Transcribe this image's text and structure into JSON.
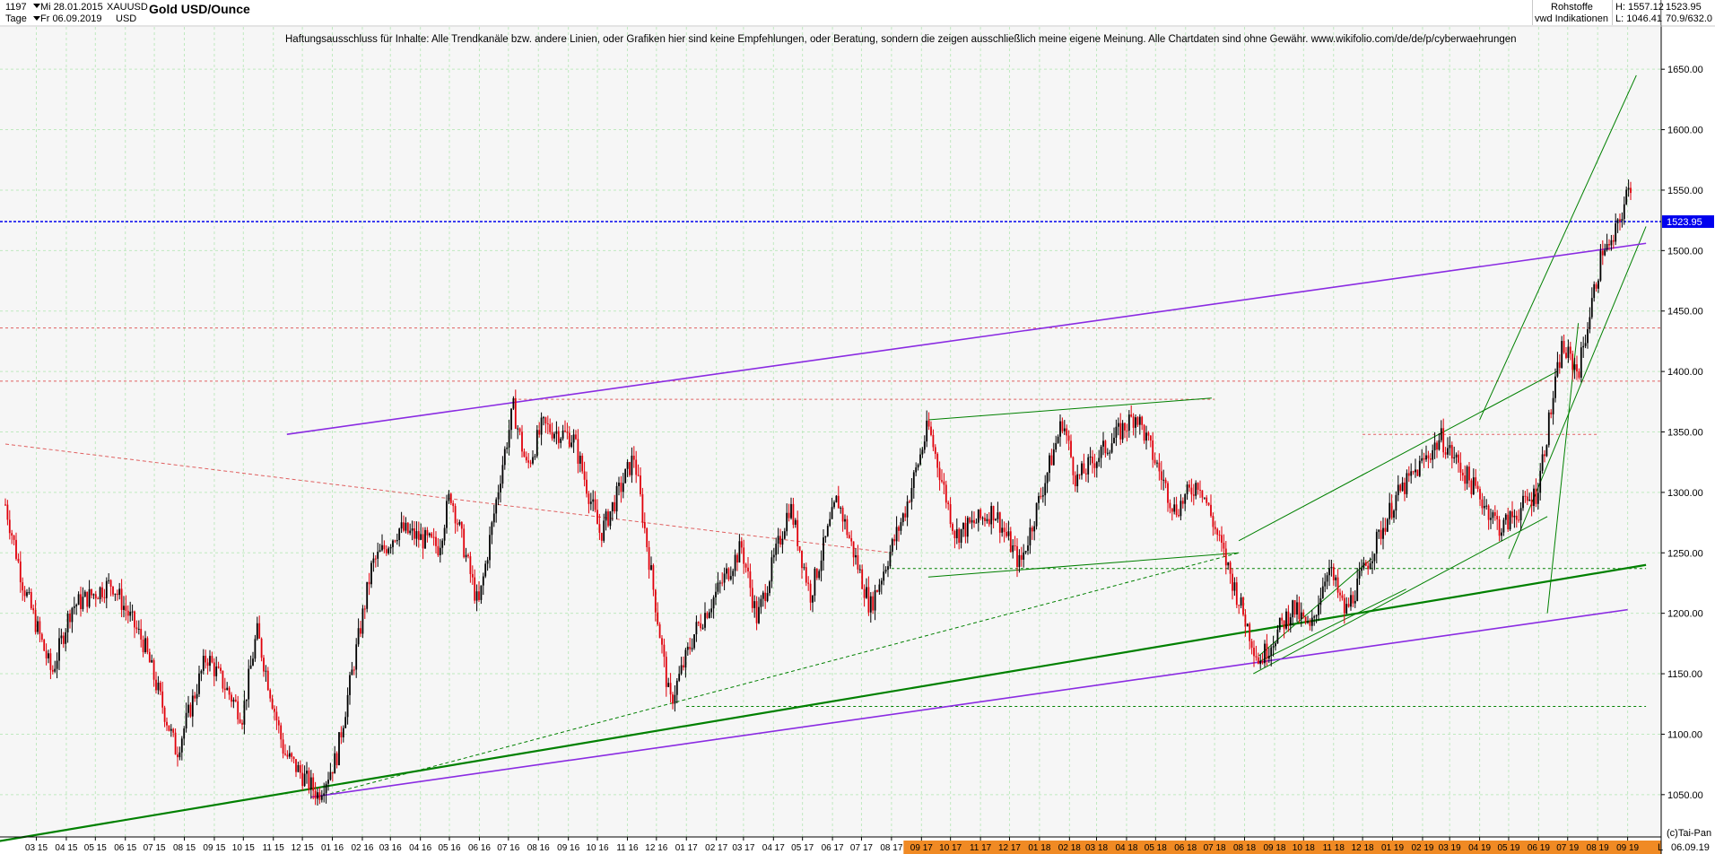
{
  "header": {
    "number": "1197",
    "date_label": "Mi 28.01.2015",
    "symbol": "XAUUSD",
    "title": "Gold USD/Ounce",
    "period": "Tage",
    "date_to": "Fr 06.09.2019",
    "currency": "USD",
    "category": "Rohstoffe",
    "source": "vwd Indikationen",
    "high": "H: 1557.12",
    "low": "L: 1046.41",
    "last_value": "1523.95",
    "extra": "70.9/632.0"
  },
  "disclaimer": "Haftungsausschluss für Inhalte: Alle Trendkanäle bzw. andere Linien, oder Grafiken hier sind keine Empfehlungen, oder Beratung, sondern die zeigen ausschließlich meine eigene Meinung. Alle Chartdaten sind ohne Gewähr.  www.wikifolio.com/de/de/p/cyberwaehrungen",
  "copyright": "(c)Tai-Pan",
  "footer": {
    "letter": "L",
    "end_date": "06.09.19"
  },
  "colors": {
    "up_candle": "#000000",
    "down_candle": "#e0000a",
    "trend_green": "#008000",
    "trend_purple": "#8a2be2",
    "level_red": "#e06060",
    "level_blue": "#0000ee",
    "grid": "#bfe9bf",
    "future_axis": "#f08a24"
  },
  "chart_data": {
    "type": "candlestick",
    "title": "Gold USD/Ounce",
    "ylim": [
      1015,
      1685
    ],
    "y_ticks": [
      1050,
      1100,
      1150,
      1200,
      1250,
      1300,
      1350,
      1400,
      1450,
      1500,
      1550,
      1600,
      1650
    ],
    "x_range": [
      "2015-01-28",
      "2019-09-06"
    ],
    "x_tick_labels": [
      "03 15",
      "04 15",
      "05 15",
      "06 15",
      "07 15",
      "08 15",
      "09 15",
      "10 15",
      "11 15",
      "12 15",
      "01 16",
      "02 16",
      "03 16",
      "04 16",
      "05 16",
      "06 16",
      "07 16",
      "08 16",
      "09 16",
      "10 16",
      "11 16",
      "12 16",
      "01 17",
      "02 17",
      "03 17",
      "04 17",
      "05 17",
      "06 17",
      "07 17",
      "08 17",
      "09 17",
      "10 17",
      "11 17",
      "12 17",
      "01 18",
      "02 18",
      "03 18",
      "04 18",
      "05 18",
      "06 18",
      "07 18",
      "08 18",
      "09 18",
      "10 18",
      "11 18",
      "12 18",
      "01 19",
      "02 19",
      "03 19",
      "04 19",
      "05 19",
      "06 19",
      "07 19",
      "08 19",
      "09 19"
    ],
    "highlighted_from": "09 17",
    "last_price": 1523.95,
    "high": 1557.12,
    "low": 1046.41,
    "price_path": [
      [
        "2015-01-28",
        1290
      ],
      [
        "2015-02-15",
        1225
      ],
      [
        "2015-03-17",
        1150
      ],
      [
        "2015-04-06",
        1205
      ],
      [
        "2015-05-18",
        1225
      ],
      [
        "2015-06-20",
        1175
      ],
      [
        "2015-07-24",
        1085
      ],
      [
        "2015-08-24",
        1165
      ],
      [
        "2015-09-30",
        1115
      ],
      [
        "2015-10-15",
        1185
      ],
      [
        "2015-11-12",
        1085
      ],
      [
        "2015-12-17",
        1050
      ],
      [
        "2016-01-05",
        1080
      ],
      [
        "2016-02-11",
        1240
      ],
      [
        "2016-03-10",
        1270
      ],
      [
        "2016-04-20",
        1255
      ],
      [
        "2016-05-02",
        1300
      ],
      [
        "2016-05-31",
        1205
      ],
      [
        "2016-06-24",
        1320
      ],
      [
        "2016-07-06",
        1370
      ],
      [
        "2016-07-20",
        1320
      ],
      [
        "2016-08-05",
        1355
      ],
      [
        "2016-09-06",
        1345
      ],
      [
        "2016-10-04",
        1265
      ],
      [
        "2016-11-08",
        1330
      ],
      [
        "2016-12-15",
        1125
      ],
      [
        "2017-01-10",
        1185
      ],
      [
        "2017-02-27",
        1255
      ],
      [
        "2017-03-15",
        1195
      ],
      [
        "2017-04-18",
        1290
      ],
      [
        "2017-05-09",
        1215
      ],
      [
        "2017-06-06",
        1295
      ],
      [
        "2017-07-10",
        1205
      ],
      [
        "2017-08-15",
        1285
      ],
      [
        "2017-09-08",
        1355
      ],
      [
        "2017-10-06",
        1265
      ],
      [
        "2017-11-15",
        1285
      ],
      [
        "2017-12-12",
        1240
      ],
      [
        "2018-01-25",
        1360
      ],
      [
        "2018-02-08",
        1310
      ],
      [
        "2018-04-11",
        1365
      ],
      [
        "2018-05-21",
        1285
      ],
      [
        "2018-06-15",
        1310
      ],
      [
        "2018-08-16",
        1160
      ],
      [
        "2018-09-20",
        1205
      ],
      [
        "2018-10-08",
        1185
      ],
      [
        "2018-10-26",
        1240
      ],
      [
        "2018-11-13",
        1200
      ],
      [
        "2019-01-04",
        1295
      ],
      [
        "2019-02-20",
        1345
      ],
      [
        "2019-04-23",
        1270
      ],
      [
        "2019-05-30",
        1300
      ],
      [
        "2019-06-25",
        1420
      ],
      [
        "2019-07-12",
        1400
      ],
      [
        "2019-08-07",
        1505
      ],
      [
        "2019-08-14",
        1500
      ],
      [
        "2019-09-04",
        1555
      ],
      [
        "2019-09-06",
        1524
      ]
    ],
    "trendlines": [
      {
        "color": "green",
        "width": 2.2,
        "dash": false,
        "from": [
          "2015-01-10",
          1010
        ],
        "to": [
          "2019-09-20",
          1240
        ]
      },
      {
        "color": "green",
        "width": 1,
        "dash": true,
        "from": [
          "2015-12-17",
          1048
        ],
        "to": [
          "2018-07-26",
          1250
        ]
      },
      {
        "color": "green",
        "width": 1,
        "dash": false,
        "from": [
          "2018-07-26",
          1260
        ],
        "to": [
          "2019-06-20",
          1400
        ]
      },
      {
        "color": "green",
        "width": 1,
        "dash": false,
        "from": [
          "2018-08-10",
          1150
        ],
        "to": [
          "2019-06-10",
          1280
        ]
      },
      {
        "color": "green",
        "width": 1,
        "dash": false,
        "from": [
          "2017-09-08",
          1360
        ],
        "to": [
          "2018-06-28",
          1378
        ]
      },
      {
        "color": "green",
        "width": 1,
        "dash": false,
        "from": [
          "2017-09-08",
          1230
        ],
        "to": [
          "2018-07-26",
          1250
        ]
      },
      {
        "color": "green",
        "width": 1,
        "dash": false,
        "from": [
          "2018-08-16",
          1160
        ],
        "to": [
          "2019-01-15",
          1220
        ]
      },
      {
        "color": "green",
        "width": 1,
        "dash": false,
        "from": [
          "2018-08-16",
          1165
        ],
        "to": [
          "2018-12-10",
          1245
        ]
      },
      {
        "color": "green",
        "width": 1,
        "dash": false,
        "from": [
          "2019-05-01",
          1245
        ],
        "to": [
          "2019-09-20",
          1520
        ]
      },
      {
        "color": "green",
        "width": 1,
        "dash": false,
        "from": [
          "2019-04-01",
          1360
        ],
        "to": [
          "2019-09-10",
          1645
        ]
      },
      {
        "color": "green",
        "width": 1,
        "dash": false,
        "from": [
          "2019-06-10",
          1200
        ],
        "to": [
          "2019-07-12",
          1440
        ]
      },
      {
        "color": "purple",
        "width": 1.6,
        "dash": false,
        "from": [
          "2015-12-10",
          1048
        ],
        "to": [
          "2019-09-01",
          1203
        ]
      },
      {
        "color": "purple",
        "width": 1.6,
        "dash": false,
        "from": [
          "2015-11-15",
          1348
        ],
        "to": [
          "2019-09-20",
          1506
        ]
      },
      {
        "color": "red",
        "width": 1,
        "dash": true,
        "from": [
          "2015-01-28",
          1340
        ],
        "to": [
          "2017-08-01",
          1250
        ]
      }
    ],
    "horizontal_levels": [
      {
        "value": 1523.95,
        "color": "blue"
      },
      {
        "value": 1436,
        "color": "red"
      },
      {
        "value": 1392,
        "color": "red"
      },
      {
        "value": 1377,
        "color": "red",
        "from": "2016-07-06",
        "to": "2018-07-01"
      },
      {
        "value": 1348,
        "color": "red",
        "from": "2018-12-01",
        "to": "2019-08-01"
      },
      {
        "value": 1237,
        "color": "green",
        "from": "2017-08-01",
        "to": "2019-09-20"
      },
      {
        "value": 1123,
        "color": "green",
        "from": "2017-01-01",
        "to": "2019-09-20"
      }
    ]
  }
}
